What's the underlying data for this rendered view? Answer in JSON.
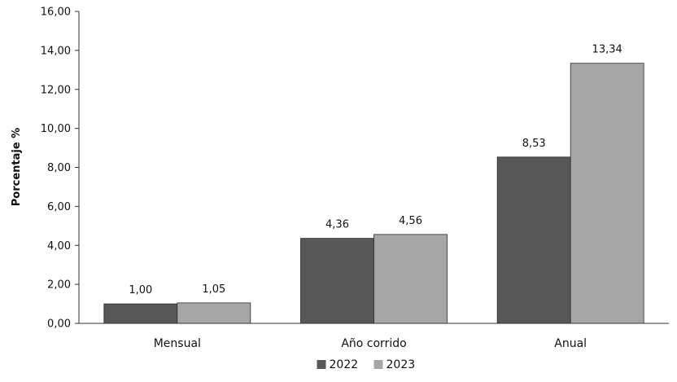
{
  "chart_data": {
    "type": "bar",
    "title": "",
    "xlabel": "",
    "ylabel": "Porcentaje %",
    "categories": [
      "Mensual",
      "Año corrido",
      "Anual"
    ],
    "series": [
      {
        "name": "2022",
        "values": [
          1.0,
          4.36,
          8.53
        ],
        "labels": [
          "1,00",
          "4,36",
          "8,53"
        ],
        "color": "#575757"
      },
      {
        "name": "2023",
        "values": [
          1.05,
          4.56,
          13.34
        ],
        "labels": [
          "1,05",
          "4,56",
          "13,34"
        ],
        "color": "#a6a6a6"
      }
    ],
    "ylim": [
      0,
      16
    ],
    "yticks": [
      0,
      2,
      4,
      6,
      8,
      10,
      12,
      14,
      16
    ],
    "ytick_labels": [
      "0,00",
      "2,00",
      "4,00",
      "6,00",
      "8,00",
      "10,00",
      "12,00",
      "14,00",
      "16,00"
    ],
    "grid": false,
    "legend_position": "bottom"
  }
}
